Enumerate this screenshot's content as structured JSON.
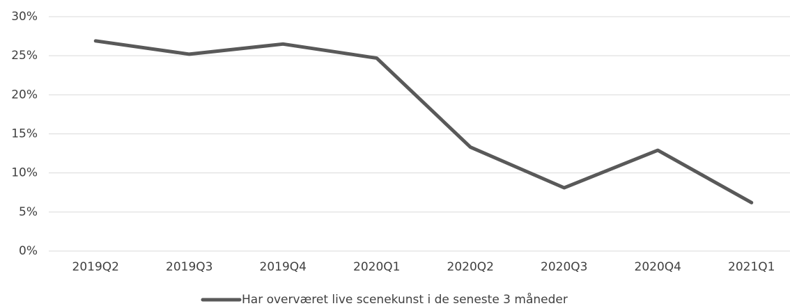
{
  "chart_data": {
    "type": "line",
    "categories": [
      "2019Q2",
      "2019Q3",
      "2019Q4",
      "2020Q1",
      "2020Q2",
      "2020Q3",
      "2020Q4",
      "2021Q1"
    ],
    "series": [
      {
        "name": "Har overværet live scenekunst i de seneste 3 måneder",
        "color": "#595959",
        "values": [
          26.9,
          25.2,
          26.5,
          24.7,
          13.3,
          8.1,
          12.9,
          6.2
        ]
      }
    ],
    "ylim": [
      0,
      30
    ],
    "yticks": [
      {
        "value": 0,
        "label": "0%"
      },
      {
        "value": 5,
        "label": "5%"
      },
      {
        "value": 10,
        "label": "10%"
      },
      {
        "value": 15,
        "label": "15%"
      },
      {
        "value": 20,
        "label": "20%"
      },
      {
        "value": 25,
        "label": "25%"
      },
      {
        "value": 30,
        "label": "30%"
      }
    ],
    "grid": true,
    "legend": "bottom"
  }
}
